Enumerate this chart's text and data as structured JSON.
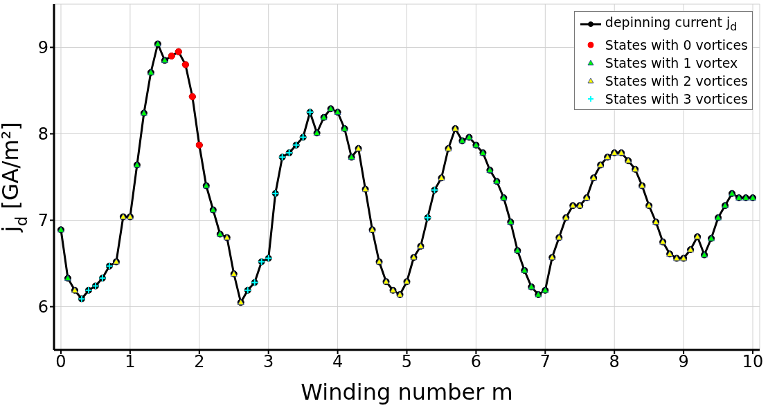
{
  "chart_data": {
    "type": "line",
    "xlabel": "Winding number m",
    "ylabel": "j$_{d}$ [GA/m²]",
    "xlim": [
      -0.1,
      10.1
    ],
    "ylim": [
      5.5,
      9.5
    ],
    "xticks": [
      0,
      1,
      2,
      3,
      4,
      5,
      6,
      7,
      8,
      9,
      10
    ],
    "yticks": [
      6,
      7,
      8,
      9
    ],
    "grid": true,
    "legend": "top right",
    "line_style": "solid",
    "x": [
      0,
      0.1,
      0.2,
      0.3,
      0.4,
      0.5,
      0.6,
      0.7,
      0.8,
      0.9,
      1,
      1.1,
      1.2,
      1.3,
      1.4,
      1.5,
      1.6,
      1.7,
      1.8,
      1.9,
      2,
      2.1,
      2.2,
      2.3,
      2.4,
      2.5,
      2.6,
      2.7,
      2.8,
      2.9,
      3,
      3.1,
      3.2,
      3.3,
      3.4,
      3.5,
      3.6,
      3.7,
      3.8,
      3.9,
      4,
      4.1,
      4.2,
      4.3,
      4.4,
      4.5,
      4.6,
      4.7,
      4.8,
      4.9,
      5,
      5.1,
      5.2,
      5.3,
      5.4,
      5.5,
      5.6,
      5.7,
      5.8,
      5.9,
      6,
      6.1,
      6.2,
      6.3,
      6.4,
      6.5,
      6.6,
      6.7,
      6.8,
      6.9,
      7,
      7.1,
      7.2,
      7.3,
      7.4,
      7.5,
      7.6,
      7.7,
      7.8,
      7.9,
      8,
      8.1,
      8.2,
      8.3,
      8.4,
      8.5,
      8.6,
      8.7,
      8.8,
      8.9,
      9,
      9.1,
      9.2,
      9.3,
      9.4,
      9.5,
      9.6,
      9.7,
      9.8,
      9.9,
      10
    ],
    "series": [
      {
        "name": "depinning current j$_{d}$",
        "color": "#000000",
        "marker": "circle",
        "values": [
          6.89,
          6.33,
          6.19,
          6.09,
          6.19,
          6.24,
          6.33,
          6.47,
          6.52,
          7.04,
          7.04,
          7.64,
          8.24,
          8.71,
          9.04,
          8.85,
          8.9,
          8.95,
          8.8,
          8.43,
          7.87,
          7.4,
          7.12,
          6.84,
          6.8,
          6.38,
          6.05,
          6.19,
          6.28,
          6.52,
          6.56,
          7.31,
          7.73,
          7.78,
          7.87,
          7.96,
          8.25,
          8.01,
          8.19,
          8.29,
          8.25,
          8.06,
          7.73,
          7.83,
          7.36,
          6.89,
          6.52,
          6.29,
          6.19,
          6.14,
          6.29,
          6.57,
          6.7,
          7.03,
          7.35,
          7.49,
          7.83,
          8.06,
          7.92,
          7.96,
          7.87,
          7.78,
          7.58,
          7.45,
          7.26,
          6.98,
          6.65,
          6.42,
          6.23,
          6.14,
          6.19,
          6.57,
          6.8,
          7.03,
          7.17,
          7.17,
          7.26,
          7.49,
          7.64,
          7.73,
          7.78,
          7.78,
          7.69,
          7.59,
          7.4,
          7.17,
          6.98,
          6.75,
          6.61,
          6.56,
          6.56,
          6.66,
          6.81,
          6.6,
          6.79,
          7.03,
          7.17,
          7.31,
          7.26,
          7.26,
          7.26
        ]
      },
      {
        "name": "States with 0 vortices",
        "type": "scatter",
        "color": "#ff0000",
        "marker": "circle",
        "x": [
          1.6,
          1.7,
          1.8,
          1.9,
          2
        ],
        "values": [
          8.9,
          8.95,
          8.8,
          8.43,
          7.87
        ]
      },
      {
        "name": "States with 1 vortex",
        "type": "scatter",
        "color": "#00ff00",
        "marker": "triangle",
        "x": [
          0,
          0.1,
          1.1,
          1.2,
          1.3,
          1.4,
          1.5,
          2.1,
          2.2,
          2.3,
          3.7,
          3.8,
          3.9,
          4,
          4.1,
          4.2,
          5.8,
          5.9,
          6,
          6.1,
          6.2,
          6.3,
          6.4,
          6.5,
          6.6,
          6.7,
          6.8,
          6.9,
          7,
          9.3,
          9.4,
          9.5,
          9.6,
          9.7,
          9.8,
          9.9,
          10
        ],
        "values": [
          6.89,
          6.33,
          7.64,
          8.24,
          8.71,
          9.04,
          8.85,
          7.4,
          7.12,
          6.84,
          8.01,
          8.19,
          8.29,
          8.25,
          8.06,
          7.73,
          7.92,
          7.96,
          7.87,
          7.78,
          7.58,
          7.45,
          7.26,
          6.98,
          6.65,
          6.42,
          6.23,
          6.14,
          6.19,
          6.6,
          6.79,
          7.03,
          7.17,
          7.31,
          7.26,
          7.26,
          7.26
        ]
      },
      {
        "name": "States with 2 vortices",
        "type": "scatter",
        "color": "#ffff00",
        "marker": "triangle",
        "x": [
          0.2,
          0.8,
          0.9,
          1,
          2.4,
          2.5,
          2.6,
          4.3,
          4.4,
          4.5,
          4.6,
          4.7,
          4.8,
          4.9,
          5,
          5.1,
          5.2,
          5.5,
          5.6,
          5.7,
          7.1,
          7.2,
          7.3,
          7.4,
          7.5,
          7.6,
          7.7,
          7.8,
          7.9,
          8,
          8.1,
          8.2,
          8.3,
          8.4,
          8.5,
          8.6,
          8.7,
          8.8,
          8.9,
          9,
          9.1,
          9.2
        ],
        "values": [
          6.19,
          6.52,
          7.04,
          7.04,
          6.8,
          6.38,
          6.05,
          7.83,
          7.36,
          6.89,
          6.52,
          6.29,
          6.19,
          6.14,
          6.29,
          6.57,
          6.7,
          7.49,
          7.83,
          8.06,
          6.57,
          6.8,
          7.03,
          7.17,
          7.17,
          7.26,
          7.49,
          7.64,
          7.73,
          7.78,
          7.78,
          7.69,
          7.59,
          7.4,
          7.17,
          6.98,
          6.75,
          6.61,
          6.56,
          6.56,
          6.66,
          6.81
        ]
      },
      {
        "name": "States with 3 vortices",
        "type": "scatter",
        "color": "#00ffff",
        "marker": "cross",
        "x": [
          0.3,
          0.4,
          0.5,
          0.6,
          0.7,
          2.7,
          2.8,
          2.9,
          3,
          3.1,
          3.2,
          3.3,
          3.4,
          3.5,
          3.6,
          5.3,
          5.4
        ],
        "values": [
          6.09,
          6.19,
          6.24,
          6.33,
          6.47,
          6.19,
          6.28,
          6.52,
          6.56,
          7.31,
          7.73,
          7.78,
          7.87,
          7.96,
          8.25,
          7.03,
          7.35
        ]
      }
    ]
  }
}
